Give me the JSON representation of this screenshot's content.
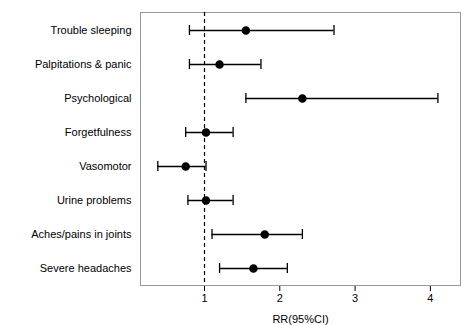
{
  "chart_data": {
    "type": "forest",
    "categories": [
      "Severe headaches",
      "Aches/pains in joints",
      "Urine problems",
      "Vasomotor",
      "Forgetfulness",
      "Psychological",
      "Palpitations & panic",
      "Trouble sleeping"
    ],
    "values": [
      1.65,
      1.8,
      1.02,
      0.75,
      1.02,
      2.3,
      1.2,
      1.55
    ],
    "ci_low": [
      1.2,
      1.1,
      0.78,
      0.38,
      0.75,
      1.55,
      0.8,
      0.8
    ],
    "ci_high": [
      2.1,
      2.3,
      1.38,
      1.02,
      1.38,
      4.1,
      1.75,
      2.72
    ],
    "xlim": [
      0.15,
      4.4
    ],
    "xticks": [
      1,
      2,
      3,
      4
    ],
    "xlabel": "RR(95%CI)",
    "ref_line": 1,
    "color": "#000000",
    "marker": "circle",
    "grid": false
  }
}
